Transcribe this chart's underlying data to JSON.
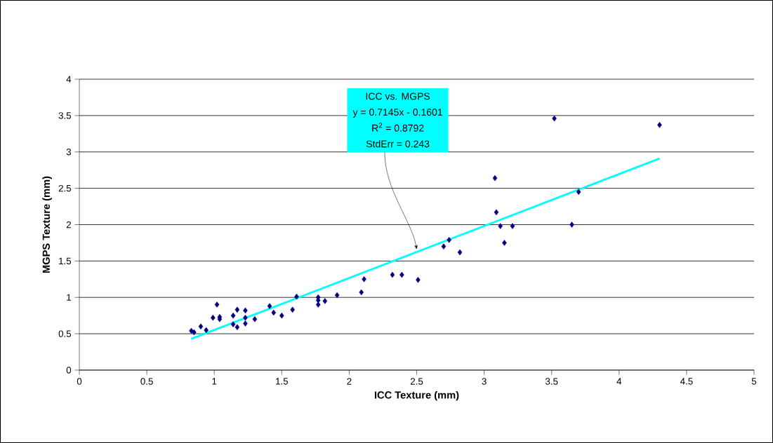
{
  "chart_data": {
    "type": "scatter",
    "xlabel": "ICC Texture (mm)",
    "ylabel": "MGPS Texture (mm)",
    "xlim": [
      0,
      5
    ],
    "ylim": [
      0,
      4
    ],
    "xticks": [
      0,
      0.5,
      1,
      1.5,
      2,
      2.5,
      3,
      3.5,
      4,
      4.5,
      5
    ],
    "yticks": [
      0,
      0.5,
      1,
      1.5,
      2,
      2.5,
      3,
      3.5,
      4
    ],
    "grid": "y",
    "series": [
      {
        "color": "#000080",
        "marker": "diamond",
        "x": [
          0.83,
          0.85,
          0.9,
          0.94,
          1.02,
          0.99,
          1.04,
          1.04,
          1.14,
          1.17,
          1.23,
          1.3,
          1.14,
          1.17,
          1.23,
          1.23,
          1.41,
          1.44,
          1.5,
          1.58,
          1.61,
          1.77,
          1.77,
          1.77,
          1.82,
          1.91,
          2.09,
          2.11,
          2.32,
          2.39,
          2.51,
          2.7,
          2.74,
          2.82,
          3.08,
          3.09,
          3.12,
          3.15,
          3.21,
          3.52,
          3.65,
          3.7,
          4.3
        ],
        "values": [
          0.54,
          0.52,
          0.6,
          0.55,
          0.9,
          0.72,
          0.7,
          0.73,
          0.75,
          0.83,
          0.82,
          0.7,
          0.63,
          0.59,
          0.64,
          0.72,
          0.88,
          0.79,
          0.75,
          0.83,
          1.01,
          1.0,
          0.96,
          0.9,
          0.95,
          1.03,
          1.07,
          1.25,
          1.31,
          1.31,
          1.24,
          1.7,
          1.79,
          1.62,
          2.64,
          2.17,
          1.98,
          1.75,
          1.98,
          3.46,
          2.0,
          2.45,
          3.37
        ]
      },
      {
        "type": "line",
        "color": "#00ffff",
        "marker": "none",
        "x": [
          0.83,
          4.3
        ],
        "values": [
          0.43,
          2.91
        ]
      }
    ],
    "annotations": [
      "ICC vs. MGPS",
      "y = 0.7145x - 0.1601",
      "R$^{2}$ = 0.8792",
      {
        "text": "StdErr = 0.243",
        "x": 2.5,
        "y": 1.66
      }
    ]
  }
}
